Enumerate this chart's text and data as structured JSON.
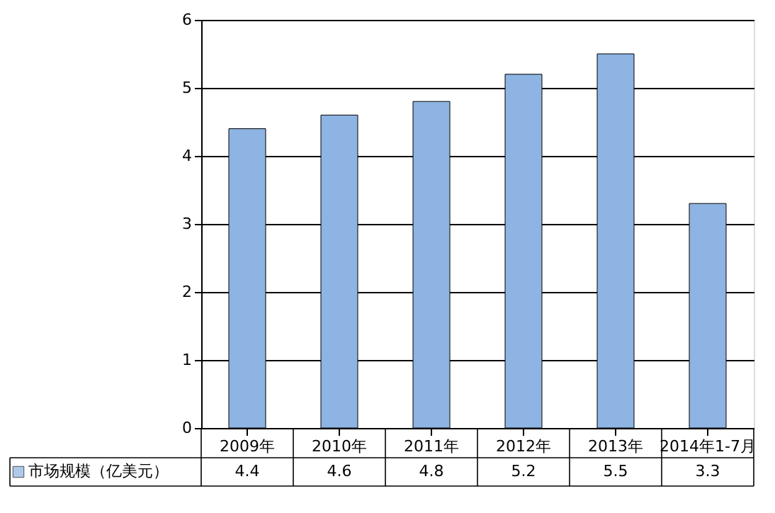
{
  "chart_data": {
    "type": "bar",
    "categories": [
      "2009年",
      "2010年",
      "2011年",
      "2012年",
      "2013年",
      "2014年1-7月"
    ],
    "series": [
      {
        "name": "市场规模（亿美元）",
        "color": "#8db4e2",
        "values": [
          4.4,
          4.6,
          4.8,
          5.2,
          5.5,
          3.3
        ]
      }
    ],
    "ylim": [
      0,
      6
    ],
    "yticks": [
      0,
      1,
      2,
      3,
      4,
      5,
      6
    ],
    "grid": "y",
    "data_labels": true,
    "legend": "bottom left"
  }
}
